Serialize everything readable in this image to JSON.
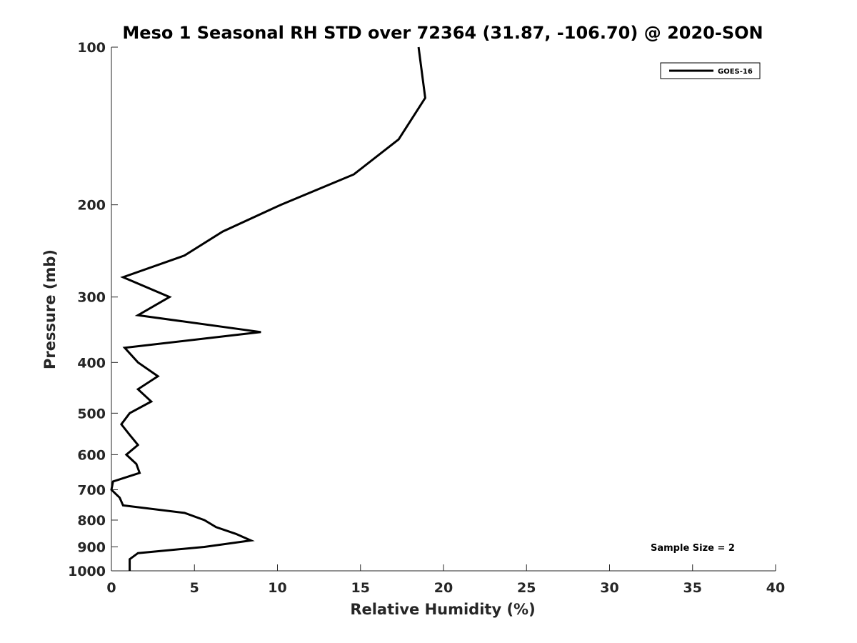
{
  "chart_data": {
    "type": "line",
    "title": "Meso 1 Seasonal RH STD over 72364 (31.87, -106.70) @ 2020-SON",
    "xlabel": "Relative Humidity (%)",
    "ylabel": "Pressure (mb)",
    "xlim": [
      0,
      40
    ],
    "ylim": [
      100,
      1000
    ],
    "y_scale": "log",
    "y_reversed": true,
    "grid": false,
    "legend_position": "top-right",
    "x_ticks": [
      0,
      5,
      10,
      15,
      20,
      25,
      30,
      35,
      40
    ],
    "x_tick_labels": [
      "0",
      "5",
      "10",
      "15",
      "20",
      "25",
      "30",
      "35",
      "40"
    ],
    "y_ticks": [
      100,
      200,
      300,
      400,
      500,
      600,
      700,
      800,
      900,
      1000
    ],
    "y_tick_labels": [
      "100",
      "200",
      "300",
      "400",
      "500",
      "600",
      "700",
      "800",
      "900",
      "1000"
    ],
    "series": [
      {
        "name": "GOES-16",
        "color": "#000000",
        "points": [
          {
            "x": 18.5,
            "y": 100
          },
          {
            "x": 18.9,
            "y": 125
          },
          {
            "x": 17.3,
            "y": 150
          },
          {
            "x": 14.6,
            "y": 175
          },
          {
            "x": 10.2,
            "y": 200
          },
          {
            "x": 6.7,
            "y": 225
          },
          {
            "x": 4.4,
            "y": 250
          },
          {
            "x": 0.7,
            "y": 275
          },
          {
            "x": 3.5,
            "y": 300
          },
          {
            "x": 1.6,
            "y": 325
          },
          {
            "x": 9.0,
            "y": 350
          },
          {
            "x": 0.8,
            "y": 375
          },
          {
            "x": 1.6,
            "y": 400
          },
          {
            "x": 2.8,
            "y": 425
          },
          {
            "x": 1.6,
            "y": 450
          },
          {
            "x": 2.4,
            "y": 475
          },
          {
            "x": 1.1,
            "y": 500
          },
          {
            "x": 0.6,
            "y": 525
          },
          {
            "x": 1.1,
            "y": 550
          },
          {
            "x": 1.6,
            "y": 575
          },
          {
            "x": 0.9,
            "y": 600
          },
          {
            "x": 1.5,
            "y": 625
          },
          {
            "x": 1.7,
            "y": 650
          },
          {
            "x": 0.1,
            "y": 675
          },
          {
            "x": 0.0,
            "y": 700
          },
          {
            "x": 0.5,
            "y": 725
          },
          {
            "x": 0.7,
            "y": 750
          },
          {
            "x": 4.4,
            "y": 775
          },
          {
            "x": 5.6,
            "y": 800
          },
          {
            "x": 6.3,
            "y": 825
          },
          {
            "x": 7.5,
            "y": 850
          },
          {
            "x": 8.4,
            "y": 875
          },
          {
            "x": 5.6,
            "y": 900
          },
          {
            "x": 1.6,
            "y": 925
          },
          {
            "x": 1.1,
            "y": 950
          },
          {
            "x": 1.1,
            "y": 975
          },
          {
            "x": 1.1,
            "y": 1000
          }
        ]
      }
    ],
    "annotations": [
      "Sample Size = 2"
    ]
  }
}
